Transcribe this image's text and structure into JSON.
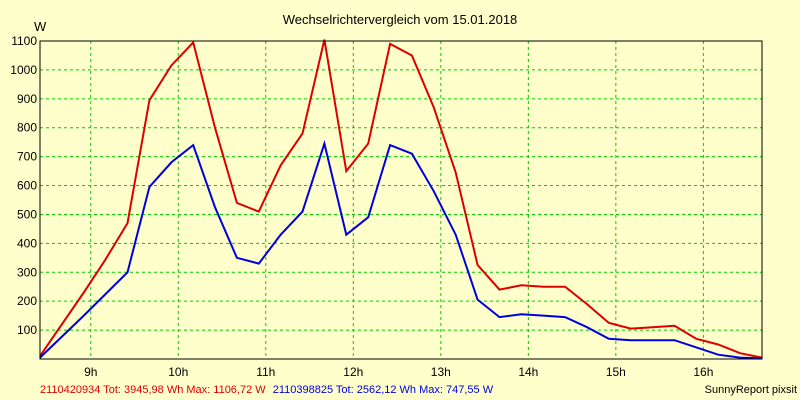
{
  "chart_data": {
    "type": "line",
    "title": "Wechselrichtervergleich vom 15.01.2018",
    "ylabel": "W",
    "xlabel": "",
    "ylim": [
      0,
      1100
    ],
    "y_ticks": [
      100,
      200,
      300,
      400,
      500,
      600,
      700,
      800,
      900,
      1000,
      1100
    ],
    "xlim": [
      8.42,
      16.67
    ],
    "x_ticks": [
      {
        "value": 9,
        "label": "9h"
      },
      {
        "value": 10,
        "label": "10h"
      },
      {
        "value": 11,
        "label": "11h"
      },
      {
        "value": 12,
        "label": "12h"
      },
      {
        "value": 13,
        "label": "13h"
      },
      {
        "value": 14,
        "label": "14h"
      },
      {
        "value": 15,
        "label": "15h"
      },
      {
        "value": 16,
        "label": "16h"
      }
    ],
    "grid": true,
    "series": [
      {
        "name": "2110420934",
        "color": "#dd0000",
        "label": "2110420934 Tot: 3945,98 Wh Max: 1106,72 W",
        "x": [
          8.42,
          8.92,
          9.17,
          9.42,
          9.67,
          9.92,
          10.17,
          10.42,
          10.67,
          10.92,
          11.17,
          11.42,
          11.67,
          11.92,
          12.17,
          12.42,
          12.67,
          12.92,
          13.17,
          13.42,
          13.67,
          13.92,
          14.17,
          14.42,
          14.67,
          14.92,
          15.17,
          15.42,
          15.67,
          15.92,
          16.17,
          16.42,
          16.67
        ],
        "values": [
          10,
          230,
          345,
          470,
          895,
          1015,
          1095,
          800,
          540,
          510,
          670,
          780,
          1105,
          650,
          745,
          1090,
          1050,
          870,
          645,
          325,
          240,
          255,
          250,
          250,
          190,
          125,
          105,
          110,
          115,
          70,
          50,
          20,
          5
        ]
      },
      {
        "name": "2110398825",
        "color": "#0000dd",
        "label": "2110398825 Tot: 2562,12 Wh Max: 747,55 W",
        "x": [
          8.42,
          8.92,
          9.17,
          9.42,
          9.67,
          9.92,
          10.17,
          10.42,
          10.67,
          10.92,
          11.17,
          11.42,
          11.67,
          11.92,
          12.17,
          12.42,
          12.67,
          12.92,
          13.17,
          13.42,
          13.67,
          13.92,
          14.17,
          14.42,
          14.67,
          14.92,
          15.17,
          15.42,
          15.67,
          15.92,
          16.17,
          16.42,
          16.67
        ],
        "values": [
          5,
          150,
          225,
          300,
          595,
          680,
          740,
          525,
          350,
          330,
          430,
          510,
          745,
          430,
          490,
          740,
          710,
          580,
          430,
          205,
          145,
          155,
          150,
          145,
          110,
          70,
          65,
          65,
          65,
          40,
          15,
          5,
          2
        ]
      }
    ],
    "footer_right": "SunnyReport pixsit"
  }
}
